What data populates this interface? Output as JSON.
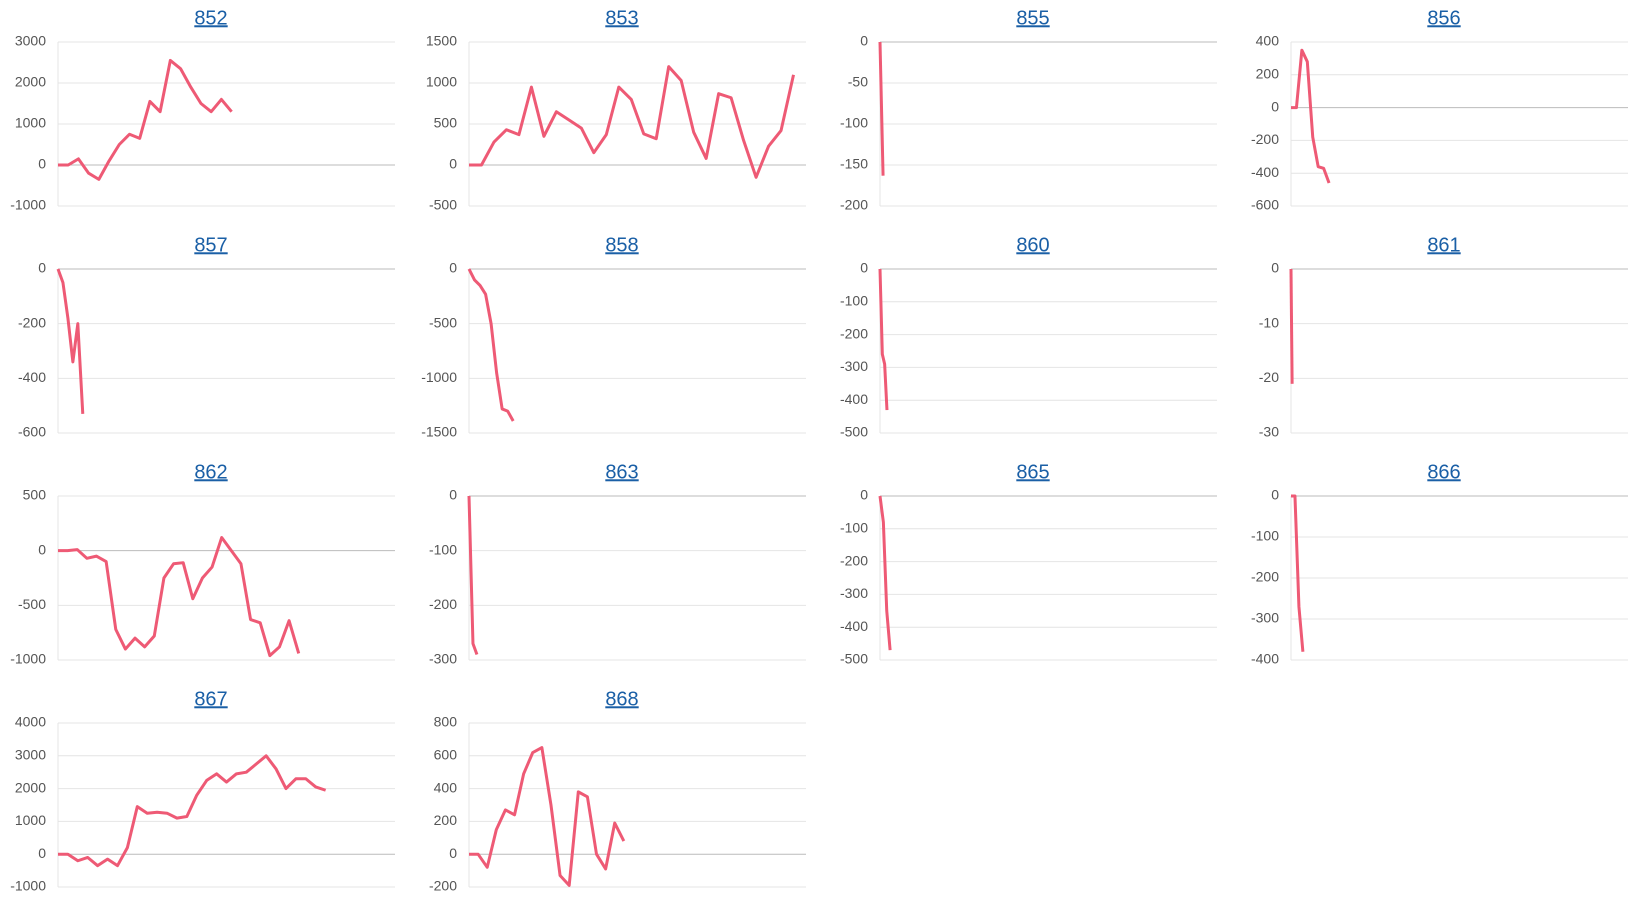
{
  "chart_data": [
    {
      "type": "line",
      "title": "852",
      "color": "#ee5a75",
      "xlim": [
        0,
        33
      ],
      "ylim": [
        -1000,
        3000
      ],
      "yticks": [
        3000,
        2000,
        1000,
        0,
        -1000
      ],
      "values": [
        0,
        0,
        150,
        -200,
        -350,
        100,
        500,
        750,
        650,
        1550,
        1300,
        2550,
        2350,
        1900,
        1500,
        1300,
        1600,
        1300
      ]
    },
    {
      "type": "line",
      "title": "853",
      "color": "#ee5a75",
      "xlim": [
        0,
        27
      ],
      "ylim": [
        -500,
        1500
      ],
      "yticks": [
        1500,
        1000,
        500,
        0,
        -500
      ],
      "values": [
        0,
        0,
        280,
        430,
        370,
        950,
        350,
        650,
        550,
        450,
        150,
        370,
        950,
        800,
        380,
        320,
        1200,
        1030,
        400,
        80,
        870,
        820,
        300,
        -150,
        230,
        420,
        1100
      ]
    },
    {
      "type": "line",
      "title": "855",
      "color": "#ee5a75",
      "xlim": [
        0,
        110
      ],
      "ylim": [
        -200,
        0
      ],
      "yticks": [
        0,
        -50,
        -100,
        -150,
        -200
      ],
      "values": [
        0,
        -163
      ]
    },
    {
      "type": "line",
      "title": "856",
      "color": "#ee5a75",
      "xlim": [
        0,
        62
      ],
      "ylim": [
        -600,
        400
      ],
      "yticks": [
        400,
        200,
        0,
        -200,
        -400,
        -600
      ],
      "values": [
        0,
        0,
        350,
        280,
        -180,
        -360,
        -370,
        -460
      ]
    },
    {
      "type": "line",
      "title": "857",
      "color": "#ee5a75",
      "xlim": [
        0,
        68
      ],
      "ylim": [
        -600,
        0
      ],
      "yticks": [
        0,
        -200,
        -400,
        -600
      ],
      "values": [
        0,
        -50,
        -180,
        -340,
        -200,
        -530
      ]
    },
    {
      "type": "line",
      "title": "858",
      "color": "#ee5a75",
      "xlim": [
        0,
        61
      ],
      "ylim": [
        -1500,
        0
      ],
      "yticks": [
        0,
        -500,
        -1000,
        -1500
      ],
      "values": [
        0,
        -100,
        -150,
        -230,
        -500,
        -950,
        -1280,
        -1300,
        -1390
      ]
    },
    {
      "type": "line",
      "title": "860",
      "color": "#ee5a75",
      "xlim": [
        0,
        145
      ],
      "ylim": [
        -500,
        0
      ],
      "yticks": [
        0,
        -100,
        -200,
        -300,
        -400,
        -500
      ],
      "values": [
        0,
        -260,
        -290,
        -430
      ]
    },
    {
      "type": "line",
      "title": "861",
      "color": "#ee5a75",
      "xlim": [
        0,
        300
      ],
      "ylim": [
        -30,
        0
      ],
      "yticks": [
        0,
        -10,
        -20,
        -30
      ],
      "values": [
        0,
        -21
      ]
    },
    {
      "type": "line",
      "title": "862",
      "color": "#ee5a75",
      "xlim": [
        0,
        35
      ],
      "ylim": [
        -1000,
        500
      ],
      "yticks": [
        500,
        0,
        -500,
        -1000
      ],
      "values": [
        0,
        0,
        10,
        -70,
        -50,
        -100,
        -720,
        -900,
        -800,
        -880,
        -780,
        -250,
        -120,
        -110,
        -440,
        -250,
        -150,
        120,
        0,
        -120,
        -630,
        -660,
        -960,
        -880,
        -640,
        -940
      ]
    },
    {
      "type": "line",
      "title": "863",
      "color": "#ee5a75",
      "xlim": [
        0,
        85
      ],
      "ylim": [
        -300,
        0
      ],
      "yticks": [
        0,
        -100,
        -200,
        -300
      ],
      "values": [
        0,
        -270,
        -290
      ]
    },
    {
      "type": "line",
      "title": "865",
      "color": "#ee5a75",
      "xlim": [
        0,
        100
      ],
      "ylim": [
        -500,
        0
      ],
      "yticks": [
        0,
        -100,
        -200,
        -300,
        -400,
        -500
      ],
      "values": [
        0,
        -80,
        -350,
        -470
      ]
    },
    {
      "type": "line",
      "title": "866",
      "color": "#ee5a75",
      "xlim": [
        0,
        85
      ],
      "ylim": [
        -400,
        0
      ],
      "yticks": [
        0,
        -100,
        -200,
        -300,
        -400
      ],
      "values": [
        0,
        0,
        -270,
        -380
      ]
    },
    {
      "type": "line",
      "title": "867",
      "color": "#ee5a75",
      "xlim": [
        0,
        34
      ],
      "ylim": [
        -1000,
        4000
      ],
      "yticks": [
        4000,
        3000,
        2000,
        1000,
        0,
        -1000
      ],
      "values": [
        0,
        0,
        -200,
        -100,
        -350,
        -150,
        -350,
        200,
        1450,
        1250,
        1280,
        1250,
        1100,
        1150,
        1800,
        2250,
        2450,
        2200,
        2450,
        2500,
        2750,
        3000,
        2600,
        2000,
        2300,
        2300,
        2050,
        1950
      ]
    },
    {
      "type": "line",
      "title": "868",
      "color": "#ee5a75",
      "xlim": [
        0,
        37
      ],
      "ylim": [
        -200,
        800
      ],
      "yticks": [
        800,
        600,
        400,
        200,
        0,
        -200
      ],
      "values": [
        0,
        0,
        -80,
        150,
        270,
        240,
        490,
        620,
        650,
        300,
        -130,
        -190,
        380,
        350,
        0,
        -90,
        190,
        80
      ]
    }
  ]
}
